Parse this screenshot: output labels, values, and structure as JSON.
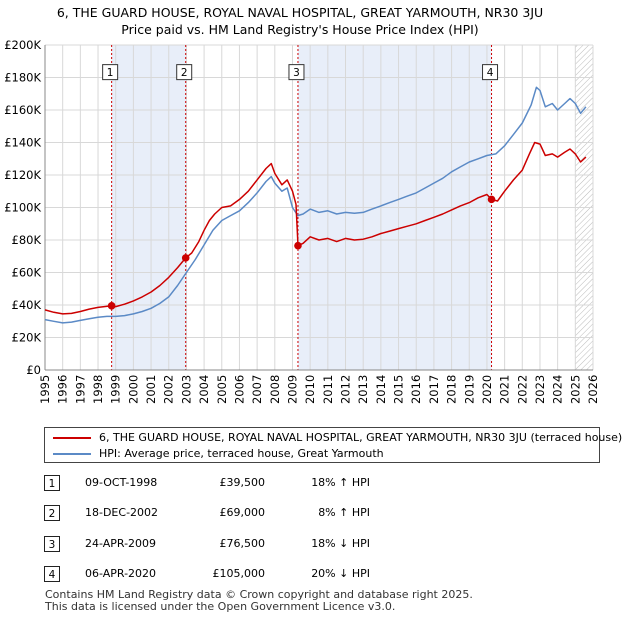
{
  "title": {
    "line1": "6, THE GUARD HOUSE, ROYAL NAVAL HOSPITAL, GREAT YARMOUTH, NR30 3JU",
    "line2": "Price paid vs. HM Land Registry's House Price Index (HPI)"
  },
  "colors": {
    "price_paid": "#cc0000",
    "hpi": "#5b8ac6",
    "shade": "#e8eef9",
    "marker_line": "#cc0000"
  },
  "chart_data": {
    "type": "line",
    "title": "Price paid vs. HM Land Registry's House Price Index (HPI)",
    "xlabel": "",
    "ylabel": "",
    "xlim": [
      1995,
      2026
    ],
    "ylim": [
      0,
      200000
    ],
    "y_ticks": [
      0,
      20000,
      40000,
      60000,
      80000,
      100000,
      120000,
      140000,
      160000,
      180000,
      200000
    ],
    "y_tick_labels": [
      "£0",
      "£20K",
      "£40K",
      "£60K",
      "£80K",
      "£100K",
      "£120K",
      "£140K",
      "£160K",
      "£180K",
      "£200K"
    ],
    "x_ticks": [
      1995,
      1996,
      1997,
      1998,
      1999,
      2000,
      2001,
      2002,
      2003,
      2004,
      2005,
      2006,
      2007,
      2008,
      2009,
      2010,
      2011,
      2012,
      2013,
      2014,
      2015,
      2016,
      2017,
      2018,
      2019,
      2020,
      2021,
      2022,
      2023,
      2024,
      2025,
      2026
    ],
    "grid": true,
    "shaded_periods": [
      [
        1998.77,
        2002.96
      ],
      [
        2009.31,
        2020.26
      ]
    ],
    "future_hatch_from": 2025.0,
    "series": [
      {
        "name": "6, THE GUARD HOUSE, ROYAL NAVAL HOSPITAL, GREAT YARMOUTH, NR30 3JU (terraced house)",
        "color": "#cc0000",
        "points": [
          [
            1995.0,
            37000
          ],
          [
            1995.5,
            35500
          ],
          [
            1996.0,
            34500
          ],
          [
            1996.5,
            34800
          ],
          [
            1997.0,
            36000
          ],
          [
            1997.5,
            37500
          ],
          [
            1998.0,
            38500
          ],
          [
            1998.77,
            39500
          ],
          [
            1999.0,
            39000
          ],
          [
            1999.5,
            40500
          ],
          [
            2000.0,
            42500
          ],
          [
            2000.5,
            45000
          ],
          [
            2001.0,
            48000
          ],
          [
            2001.5,
            52000
          ],
          [
            2002.0,
            57000
          ],
          [
            2002.5,
            63000
          ],
          [
            2002.96,
            69000
          ],
          [
            2003.3,
            72000
          ],
          [
            2003.7,
            79000
          ],
          [
            2004.0,
            86000
          ],
          [
            2004.3,
            92000
          ],
          [
            2004.6,
            96000
          ],
          [
            2005.0,
            100000
          ],
          [
            2005.5,
            101000
          ],
          [
            2006.0,
            105000
          ],
          [
            2006.5,
            110000
          ],
          [
            2007.0,
            117000
          ],
          [
            2007.5,
            124000
          ],
          [
            2007.8,
            127000
          ],
          [
            2008.0,
            121000
          ],
          [
            2008.4,
            114000
          ],
          [
            2008.7,
            117000
          ],
          [
            2009.0,
            110000
          ],
          [
            2009.2,
            102000
          ],
          [
            2009.31,
            76500
          ],
          [
            2009.6,
            78000
          ],
          [
            2010.0,
            82000
          ],
          [
            2010.5,
            80000
          ],
          [
            2011.0,
            81000
          ],
          [
            2011.5,
            79000
          ],
          [
            2012.0,
            81000
          ],
          [
            2012.5,
            80000
          ],
          [
            2013.0,
            80500
          ],
          [
            2013.5,
            82000
          ],
          [
            2014.0,
            84000
          ],
          [
            2014.5,
            85500
          ],
          [
            2015.0,
            87000
          ],
          [
            2015.5,
            88500
          ],
          [
            2016.0,
            90000
          ],
          [
            2016.5,
            92000
          ],
          [
            2017.0,
            94000
          ],
          [
            2017.5,
            96000
          ],
          [
            2018.0,
            98500
          ],
          [
            2018.5,
            101000
          ],
          [
            2019.0,
            103000
          ],
          [
            2019.5,
            106000
          ],
          [
            2020.0,
            108000
          ],
          [
            2020.26,
            105000
          ],
          [
            2020.6,
            104000
          ],
          [
            2021.0,
            110000
          ],
          [
            2021.5,
            117000
          ],
          [
            2022.0,
            123000
          ],
          [
            2022.4,
            133000
          ],
          [
            2022.7,
            140000
          ],
          [
            2023.0,
            139000
          ],
          [
            2023.3,
            132000
          ],
          [
            2023.7,
            133000
          ],
          [
            2024.0,
            131000
          ],
          [
            2024.4,
            134000
          ],
          [
            2024.7,
            136000
          ],
          [
            2025.0,
            133000
          ],
          [
            2025.3,
            128000
          ],
          [
            2025.6,
            131000
          ]
        ]
      },
      {
        "name": "HPI: Average price, terraced house, Great Yarmouth",
        "color": "#5b8ac6",
        "points": [
          [
            1995.0,
            31000
          ],
          [
            1995.5,
            30000
          ],
          [
            1996.0,
            29000
          ],
          [
            1996.5,
            29500
          ],
          [
            1997.0,
            30500
          ],
          [
            1997.5,
            31500
          ],
          [
            1998.0,
            32500
          ],
          [
            1998.5,
            33000
          ],
          [
            1999.0,
            33000
          ],
          [
            1999.5,
            33500
          ],
          [
            2000.0,
            34500
          ],
          [
            2000.5,
            36000
          ],
          [
            2001.0,
            38000
          ],
          [
            2001.5,
            41000
          ],
          [
            2002.0,
            45000
          ],
          [
            2002.5,
            52000
          ],
          [
            2003.0,
            60000
          ],
          [
            2003.5,
            68000
          ],
          [
            2004.0,
            77000
          ],
          [
            2004.5,
            86000
          ],
          [
            2005.0,
            92000
          ],
          [
            2005.5,
            95000
          ],
          [
            2006.0,
            98000
          ],
          [
            2006.5,
            103000
          ],
          [
            2007.0,
            109000
          ],
          [
            2007.5,
            116000
          ],
          [
            2007.8,
            119000
          ],
          [
            2008.0,
            115000
          ],
          [
            2008.4,
            110000
          ],
          [
            2008.7,
            112000
          ],
          [
            2009.0,
            100000
          ],
          [
            2009.3,
            95000
          ],
          [
            2009.6,
            96000
          ],
          [
            2010.0,
            99000
          ],
          [
            2010.5,
            97000
          ],
          [
            2011.0,
            98000
          ],
          [
            2011.5,
            96000
          ],
          [
            2012.0,
            97000
          ],
          [
            2012.5,
            96500
          ],
          [
            2013.0,
            97000
          ],
          [
            2013.5,
            99000
          ],
          [
            2014.0,
            101000
          ],
          [
            2014.5,
            103000
          ],
          [
            2015.0,
            105000
          ],
          [
            2015.5,
            107000
          ],
          [
            2016.0,
            109000
          ],
          [
            2016.5,
            112000
          ],
          [
            2017.0,
            115000
          ],
          [
            2017.5,
            118000
          ],
          [
            2018.0,
            122000
          ],
          [
            2018.5,
            125000
          ],
          [
            2019.0,
            128000
          ],
          [
            2019.5,
            130000
          ],
          [
            2020.0,
            132000
          ],
          [
            2020.5,
            133000
          ],
          [
            2021.0,
            138000
          ],
          [
            2021.5,
            145000
          ],
          [
            2022.0,
            152000
          ],
          [
            2022.5,
            163000
          ],
          [
            2022.8,
            174000
          ],
          [
            2023.0,
            172000
          ],
          [
            2023.3,
            162000
          ],
          [
            2023.7,
            164000
          ],
          [
            2024.0,
            160000
          ],
          [
            2024.4,
            164000
          ],
          [
            2024.7,
            167000
          ],
          [
            2025.0,
            164000
          ],
          [
            2025.3,
            158000
          ],
          [
            2025.6,
            162000
          ]
        ]
      }
    ],
    "transactions": [
      {
        "label": "1",
        "x": 1998.77,
        "y": 39500
      },
      {
        "label": "2",
        "x": 2002.96,
        "y": 69000
      },
      {
        "label": "3",
        "x": 2009.31,
        "y": 76500
      },
      {
        "label": "4",
        "x": 2020.26,
        "y": 105000
      }
    ],
    "marker_label_y": 183000
  },
  "legend": {
    "entry1": "6, THE GUARD HOUSE, ROYAL NAVAL HOSPITAL, GREAT YARMOUTH, NR30 3JU (terraced house)",
    "entry2": "HPI: Average price, terraced house, Great Yarmouth"
  },
  "transactions_table": [
    {
      "num": "1",
      "date": "09-OCT-1998",
      "price": "£39,500",
      "delta": "18% ↑ HPI"
    },
    {
      "num": "2",
      "date": "18-DEC-2002",
      "price": "£69,000",
      "delta": "8% ↑ HPI"
    },
    {
      "num": "3",
      "date": "24-APR-2009",
      "price": "£76,500",
      "delta": "18% ↓ HPI"
    },
    {
      "num": "4",
      "date": "06-APR-2020",
      "price": "£105,000",
      "delta": "20% ↓ HPI"
    }
  ],
  "footer": {
    "line1": "Contains HM Land Registry data © Crown copyright and database right 2025.",
    "line2": "This data is licensed under the Open Government Licence v3.0."
  }
}
